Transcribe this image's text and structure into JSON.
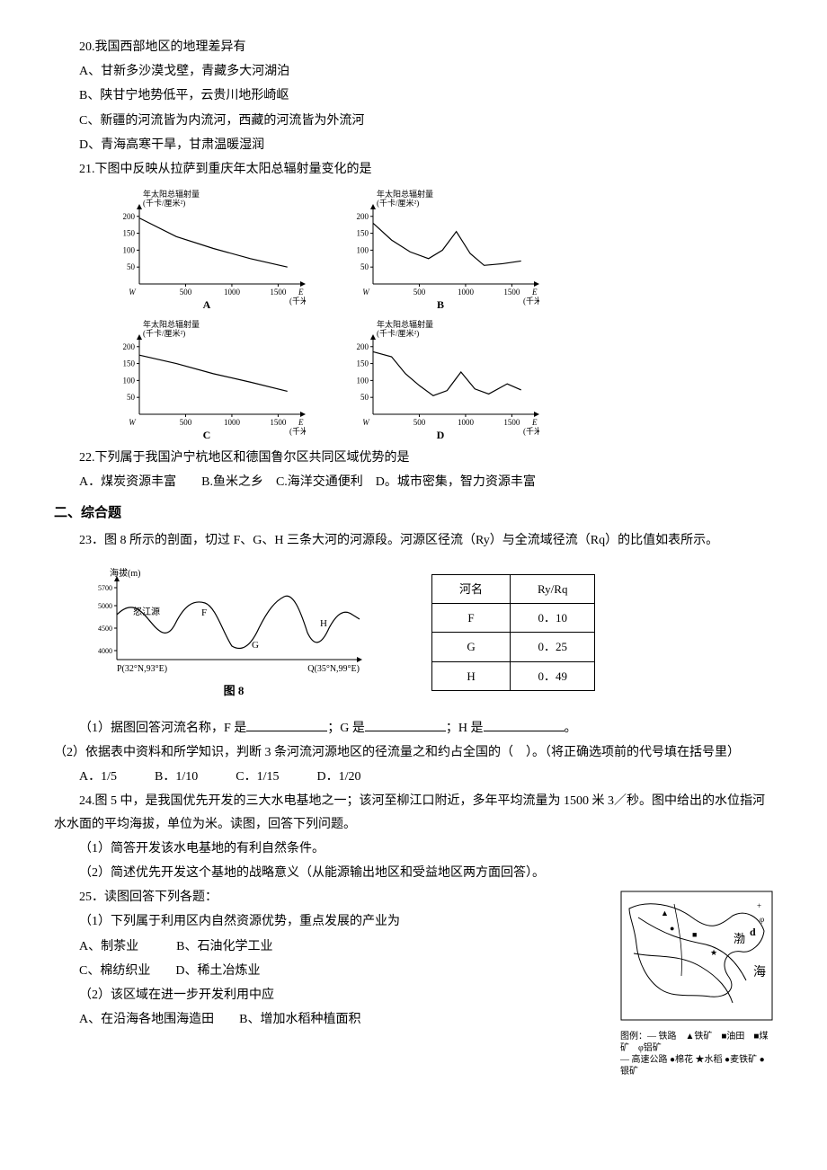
{
  "q20": {
    "stem": "20.我国西部地区的地理差异有",
    "optA": "A、甘新多沙漠戈壁，青藏多大河湖泊",
    "optB": "B、陕甘宁地势低平，云贵川地形崎岖",
    "optC": "C、新疆的河流皆为内流河，西藏的河流皆为外流河",
    "optD": "D、青海高寒干旱，甘肃温暖湿润"
  },
  "q21": {
    "stem": "21.下图中反映从拉萨到重庆年太阳总辐射量变化的是",
    "charts": {
      "ylabel": "年太阳总辐射量",
      "yunit": "(千卡/厘米²)",
      "xlabel_w": "W",
      "xlabel_e": "E",
      "xunit": "(千米)",
      "xticks": [
        500,
        1000,
        1500
      ],
      "yticks": [
        50,
        100,
        150,
        200
      ],
      "ylim": [
        0,
        210
      ],
      "xlim": [
        0,
        1700
      ],
      "line_color": "#000000",
      "line_width": 1.2,
      "background": "#ffffff",
      "A": {
        "label": "A",
        "points": [
          [
            0,
            195
          ],
          [
            400,
            140
          ],
          [
            800,
            105
          ],
          [
            1200,
            75
          ],
          [
            1600,
            50
          ]
        ]
      },
      "B": {
        "label": "B",
        "points": [
          [
            0,
            180
          ],
          [
            200,
            130
          ],
          [
            400,
            95
          ],
          [
            600,
            75
          ],
          [
            750,
            100
          ],
          [
            900,
            155
          ],
          [
            1050,
            90
          ],
          [
            1200,
            55
          ],
          [
            1400,
            60
          ],
          [
            1600,
            68
          ]
        ]
      },
      "C": {
        "label": "C",
        "points": [
          [
            0,
            175
          ],
          [
            400,
            150
          ],
          [
            800,
            120
          ],
          [
            1200,
            95
          ],
          [
            1600,
            68
          ]
        ]
      },
      "D": {
        "label": "D",
        "points": [
          [
            0,
            185
          ],
          [
            200,
            170
          ],
          [
            350,
            120
          ],
          [
            500,
            85
          ],
          [
            650,
            55
          ],
          [
            800,
            70
          ],
          [
            950,
            125
          ],
          [
            1100,
            75
          ],
          [
            1250,
            60
          ],
          [
            1450,
            90
          ],
          [
            1600,
            72
          ]
        ]
      }
    }
  },
  "q22": {
    "stem": "22.下列属于我国沪宁杭地区和德国鲁尔区共同区域优势的是",
    "options": "A．煤炭资源丰富　　B.鱼米之乡　C.海洋交通便利　D。城市密集，智力资源丰富"
  },
  "section2": "二、综合题",
  "q23": {
    "stem": "23．图 8 所示的剖面，切过 F、G、H 三条大河的河源段。河源区径流（Ry）与全流域径流（Rq）的比值如表所示。",
    "profile": {
      "ylabel": "海拔(m)",
      "yticks": [
        "5700",
        "5000",
        "4500",
        "4000"
      ],
      "left_label": "P(32°N,93°E)",
      "right_label": "Q(35°N,99°E)",
      "river_label": "怒江源",
      "caption": "图 8",
      "points_F": "F",
      "points_G": "G",
      "points_H": "H",
      "line_color": "#000000"
    },
    "table": {
      "header_river": "河名",
      "header_ratio": "Ry/Rq",
      "rows": [
        {
          "name": "F",
          "val": "0．10"
        },
        {
          "name": "G",
          "val": "0．25"
        },
        {
          "name": "H",
          "val": "0．49"
        }
      ]
    },
    "sub1_prefix": "（1）据图回答河流名称，F 是",
    "sub1_mid1": "；G 是",
    "sub1_mid2": "；H 是",
    "sub1_end": "。",
    "sub2": "（2）依据表中资料和所学知识，判断 3 条河流河源地区的径流量之和约占全国的（　）。（将正确选项前的代号填在括号里）",
    "sub2_opts": "A．1/5　　　B．1/10　　　C．1/15　　　D．1/20"
  },
  "q24": {
    "stem": "24.图 5 中，是我国优先开发的三大水电基地之一；该河至柳江口附近，多年平均流量为 1500 米 3／秒。图中给出的水位指河水水面的平均海拔，单位为米。读图，回答下列问题。",
    "sub1": "（1）简答开发该水电基地的有利自然条件。",
    "sub2": "（2）简述优先开发这个基地的战略意义（从能源输出地区和受益地区两方面回答）。"
  },
  "q25": {
    "stem": "25．读图回答下列各题：",
    "sub1": "（1）下列属于利用区内自然资源优势，重点发展的产业为",
    "sub1_optA": "A、制茶业　　　B、石油化学工业",
    "sub1_optC": "C、棉纺织业　　D、稀土冶炼业",
    "sub2": "（2）该区域在进一步开发利用中应",
    "sub2_optA": "A、在沿海各地围海造田　　B、增加水稻种植面积",
    "map": {
      "sea_label": "海",
      "bohai_label": "渤",
      "point_d": "d",
      "legend": "图例：— 铁路　▲铁矿　■油田　■煤矿　φ铝矿\n— 高速公路 ●棉花 ★水稻 ●麦铁矿 ●银矿"
    }
  }
}
